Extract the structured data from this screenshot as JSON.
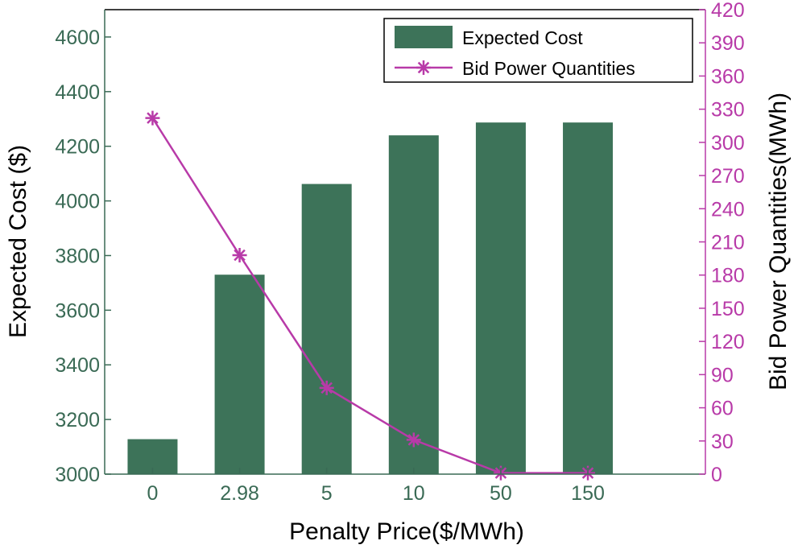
{
  "chart_data": {
    "type": "bar",
    "categories": [
      "0",
      "2.98",
      "5",
      "10",
      "50",
      "150"
    ],
    "series": [
      {
        "name": "Expected Cost",
        "type": "bar",
        "axis": "left",
        "values": [
          3128,
          3730,
          4062,
          4240,
          4287,
          4287
        ],
        "color": "#3d7359"
      },
      {
        "name": "Bid Power Quantities",
        "type": "line",
        "axis": "right",
        "values": [
          322,
          198,
          78,
          31,
          1,
          1
        ],
        "color": "#b83aa8"
      }
    ],
    "xlabel": "Penalty Price($/MWh)",
    "ylabel_left": "Expected Cost ($)",
    "ylabel_right": "Bid Power Quantities(MWh)",
    "ylim_left": [
      3000,
      4700
    ],
    "yticks_left": [
      3000,
      3200,
      3400,
      3600,
      3800,
      4000,
      4200,
      4400,
      4600
    ],
    "ylim_right": [
      0,
      420
    ],
    "yticks_right": [
      0,
      30,
      60,
      90,
      120,
      150,
      180,
      210,
      240,
      270,
      300,
      330,
      360,
      390,
      420
    ],
    "legend_position": "top-right",
    "grid": false
  }
}
